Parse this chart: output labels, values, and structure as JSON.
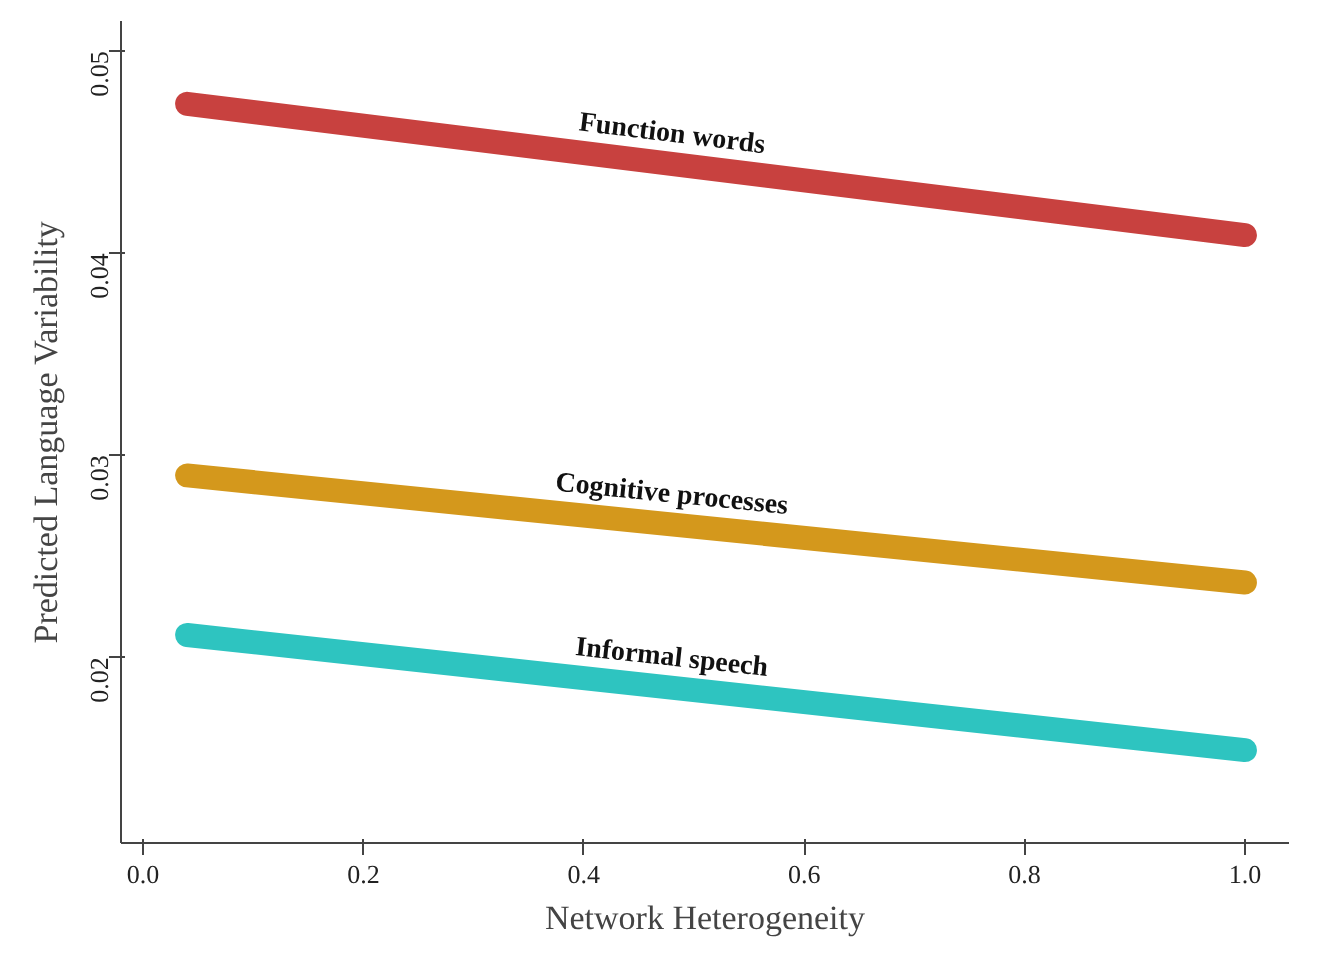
{
  "chart_data": {
    "type": "line",
    "xlabel": "Network Heterogeneity",
    "ylabel": "Predicted Language Variability",
    "x": [
      0.04,
      1.0
    ],
    "series": [
      {
        "name": "Function words",
        "color": "#c8413f",
        "values": [
          0.0474,
          0.0409
        ]
      },
      {
        "name": "Cognitive processes",
        "color": "#d4981c",
        "values": [
          0.029,
          0.0237
        ]
      },
      {
        "name": "Informal speech",
        "color": "#2ec4c0",
        "values": [
          0.0211,
          0.0154
        ]
      }
    ],
    "xlim": [
      -0.02,
      1.04
    ],
    "ylim": [
      0.0108,
      0.0515
    ],
    "xticks": [
      {
        "value": 0.0,
        "label": "0.0"
      },
      {
        "value": 0.2,
        "label": "0.2"
      },
      {
        "value": 0.4,
        "label": "0.4"
      },
      {
        "value": 0.6,
        "label": "0.6"
      },
      {
        "value": 0.8,
        "label": "0.8"
      },
      {
        "value": 1.0,
        "label": "1.0"
      }
    ],
    "yticks": [
      {
        "value": 0.02,
        "label": "0.02"
      },
      {
        "value": 0.03,
        "label": "0.03"
      },
      {
        "value": 0.04,
        "label": "0.04"
      },
      {
        "value": 0.05,
        "label": "0.05"
      }
    ],
    "grid": false,
    "line_style": "solid"
  }
}
